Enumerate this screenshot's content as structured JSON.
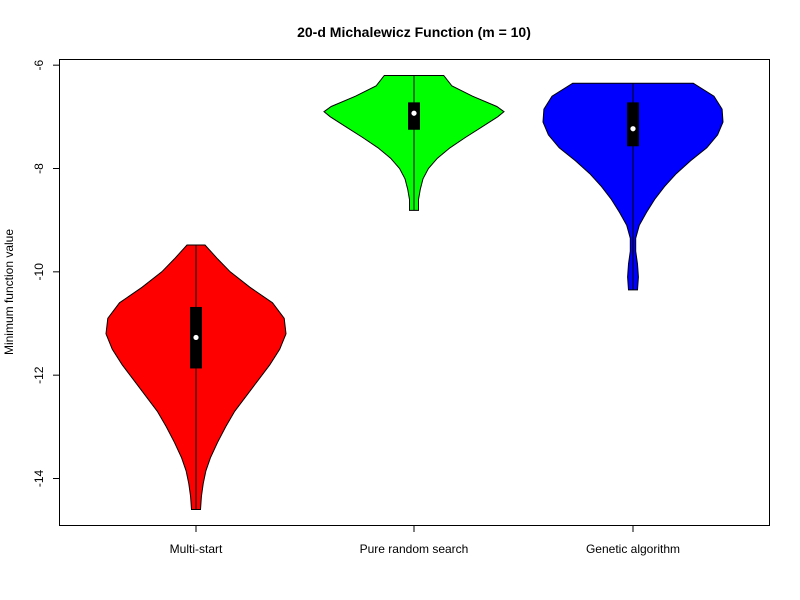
{
  "chart_data": {
    "type": "violin",
    "title": "20-d Michalewicz Function (m = 10)",
    "xlabel": "",
    "ylabel": "Minimum function value",
    "categories": [
      "Multi-start",
      "Pure random search",
      "Genetic algorithm"
    ],
    "ylim": [
      -14.9,
      -5.9
    ],
    "yticks": [
      -14,
      -12,
      -10,
      -8,
      -6
    ],
    "ytick_labels": [
      "-14",
      "-12",
      "-10",
      "-8",
      "-6"
    ],
    "grid": false,
    "legend": "none",
    "series": [
      {
        "category": "Multi-start",
        "color": "#ff0000",
        "min": -14.6,
        "q1": -11.87,
        "median": -11.27,
        "q3": -10.68,
        "max": -9.48,
        "profile": [
          [
            -14.6,
            0.05
          ],
          [
            -14.35,
            0.06
          ],
          [
            -14.1,
            0.08
          ],
          [
            -13.85,
            0.11
          ],
          [
            -13.6,
            0.16
          ],
          [
            -13.3,
            0.24
          ],
          [
            -13.0,
            0.33
          ],
          [
            -12.7,
            0.43
          ],
          [
            -12.4,
            0.56
          ],
          [
            -12.1,
            0.69
          ],
          [
            -11.8,
            0.82
          ],
          [
            -11.5,
            0.93
          ],
          [
            -11.2,
            1.0
          ],
          [
            -10.9,
            0.98
          ],
          [
            -10.6,
            0.85
          ],
          [
            -10.3,
            0.6
          ],
          [
            -10.0,
            0.38
          ],
          [
            -9.75,
            0.24
          ],
          [
            -9.48,
            0.1
          ]
        ]
      },
      {
        "category": "Pure random search",
        "color": "#00ff00",
        "min": -8.81,
        "q1": -7.25,
        "median": -6.93,
        "q3": -6.72,
        "max": -6.2,
        "profile": [
          [
            -8.81,
            0.05
          ],
          [
            -8.6,
            0.05
          ],
          [
            -8.4,
            0.07
          ],
          [
            -8.2,
            0.1
          ],
          [
            -8.0,
            0.16
          ],
          [
            -7.8,
            0.26
          ],
          [
            -7.6,
            0.4
          ],
          [
            -7.4,
            0.57
          ],
          [
            -7.2,
            0.75
          ],
          [
            -7.0,
            0.93
          ],
          [
            -6.9,
            1.0
          ],
          [
            -6.8,
            0.92
          ],
          [
            -6.6,
            0.65
          ],
          [
            -6.4,
            0.42
          ],
          [
            -6.2,
            0.33
          ]
        ]
      },
      {
        "category": "Genetic algorithm",
        "color": "#0000ff",
        "min": -10.35,
        "q1": -7.57,
        "median": -7.23,
        "q3": -6.72,
        "max": -6.35,
        "profile": [
          [
            -10.35,
            0.05
          ],
          [
            -10.1,
            0.06
          ],
          [
            -9.85,
            0.05
          ],
          [
            -9.6,
            0.03
          ],
          [
            -9.35,
            0.03
          ],
          [
            -9.1,
            0.07
          ],
          [
            -8.85,
            0.15
          ],
          [
            -8.6,
            0.24
          ],
          [
            -8.35,
            0.35
          ],
          [
            -8.1,
            0.48
          ],
          [
            -7.85,
            0.64
          ],
          [
            -7.6,
            0.82
          ],
          [
            -7.35,
            0.94
          ],
          [
            -7.1,
            1.0
          ],
          [
            -6.85,
            0.99
          ],
          [
            -6.6,
            0.9
          ],
          [
            -6.35,
            0.67
          ]
        ]
      }
    ]
  }
}
